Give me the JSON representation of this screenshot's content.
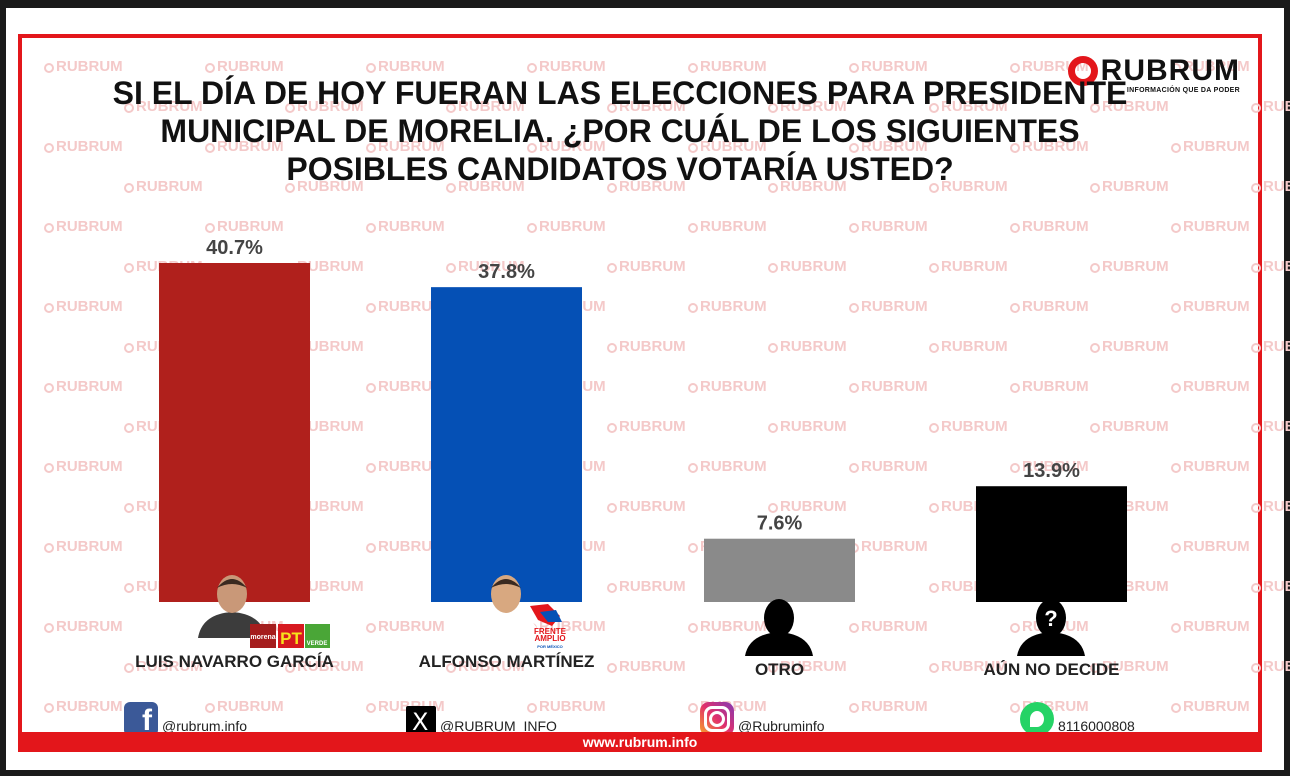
{
  "brand": {
    "name": "RUBRUM",
    "tagline": "INFORMACIÓN QUE DA PODER",
    "watermark": "RUBRUM"
  },
  "title_lines": [
    "SI EL DÍA DE HOY FUERAN LAS ELECCIONES PARA PRESIDENTE",
    "MUNICIPAL DE MORELIA. ¿POR CUÁL DE LOS SIGUIENTES",
    "POSIBLES CANDIDATOS VOTARÍA USTED?"
  ],
  "chart_data": {
    "type": "bar",
    "title": "SI EL DÍA DE HOY FUERAN LAS ELECCIONES PARA PRESIDENTE MUNICIPAL DE MORELIA. ¿POR CUÁL DE LOS SIGUIENTES POSIBLES CANDIDATOS VOTARÍA USTED?",
    "categories": [
      "LUIS NAVARRO GARCÍA",
      "ALFONSO MARTÍNEZ",
      "OTRO",
      "AÚN NO DECIDE"
    ],
    "values": [
      40.7,
      37.8,
      7.6,
      13.9
    ],
    "value_labels": [
      "40.7%",
      "37.8%",
      "7.6%",
      "13.9%"
    ],
    "colors": [
      "#b0201c",
      "#0550b5",
      "#8a8a8a",
      "#000000"
    ],
    "ylim": [
      0,
      40.7
    ],
    "grid": false,
    "xlabel": "",
    "ylabel": ""
  },
  "party_logos": {
    "morena": "morena",
    "pt": "PT",
    "verde": "VERDE",
    "frente": [
      "FRENTE",
      "AMPLIO",
      "POR MÉXICO"
    ]
  },
  "social": {
    "facebook": "@rubrum.info",
    "x": "@RUBRUM_INFO",
    "instagram": "@Rubruminfo",
    "whatsapp": "8116000808"
  },
  "website": "www.rubrum.info",
  "icons": {
    "facebook": "facebook-icon",
    "x": "x-icon",
    "instagram": "instagram-icon",
    "whatsapp": "whatsapp-icon"
  }
}
